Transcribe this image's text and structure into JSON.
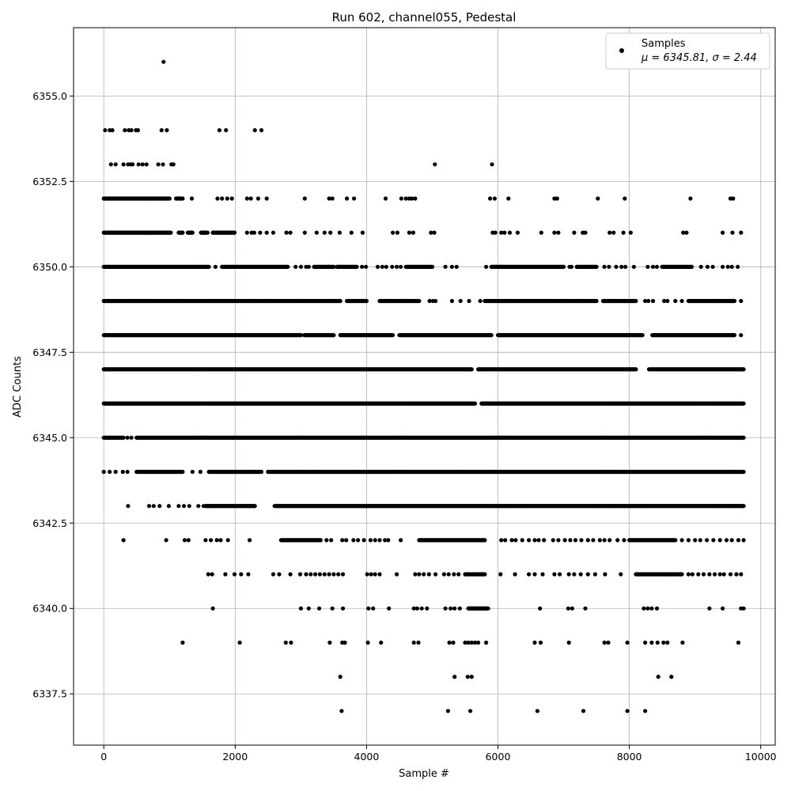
{
  "chart_data": {
    "type": "scatter",
    "title": "Run 602, channel055, Pedestal",
    "xlabel": "Sample #",
    "ylabel": "ADC Counts",
    "xlim": [
      -460,
      10220
    ],
    "ylim": [
      6336.0,
      6357.0
    ],
    "xticks": [
      0,
      2000,
      4000,
      6000,
      8000,
      10000
    ],
    "xtick_labels": [
      "0",
      "2000",
      "4000",
      "6000",
      "8000",
      "10000"
    ],
    "yticks": [
      6337.5,
      6340.0,
      6342.5,
      6345.0,
      6347.5,
      6350.0,
      6352.5,
      6355.0
    ],
    "ytick_labels": [
      "6337.5",
      "6340.0",
      "6342.5",
      "6345.0",
      "6347.5",
      "6350.0",
      "6352.5",
      "6355.0"
    ],
    "grid": true,
    "legend": {
      "placement": "top-right",
      "entries": [
        {
          "label": "Samples",
          "stats": "μ = 6345.81, σ = 2.44",
          "color": "#000000",
          "marker": "circle"
        }
      ]
    },
    "series": [
      {
        "name": "Samples",
        "color": "#000000",
        "x_range": [
          0,
          9740
        ],
        "levels": [
          {
            "y": 6356,
            "x": [
              910
            ]
          },
          {
            "y": 6354,
            "x": [
              20,
              90,
              130,
              320,
              380,
              420,
              490,
              520,
              880,
              960,
              1760,
              1860,
              2300,
              2400
            ]
          },
          {
            "y": 6353,
            "x": [
              110,
              180,
              300,
              370,
              410,
              440,
              530,
              590,
              650,
              830,
              900,
              1030,
              1060,
              5040,
              5910
            ]
          },
          {
            "y": 6352,
            "segments": [
              [
                0,
                1000
              ],
              [
                1100,
                1200
              ]
            ],
            "x": [
              1340,
              1730,
              1800,
              1880,
              1950,
              2180,
              2240,
              2350,
              2480,
              3060,
              3430,
              3480,
              3700,
              3810,
              4290,
              4530,
              4600,
              4650,
              4690,
              4740,
              5880,
              5950,
              6160,
              6860,
              6900,
              7520,
              7930,
              8930,
              9540,
              9580
            ]
          },
          {
            "y": 6351,
            "segments": [
              [
                0,
                1020
              ],
              [
                1140,
                1200
              ],
              [
                1280,
                1350
              ],
              [
                1480,
                1580
              ],
              [
                1660,
                1990
              ]
            ],
            "x": [
              2180,
              2250,
              2290,
              2380,
              2480,
              2580,
              2780,
              2840,
              3060,
              3240,
              3360,
              3450,
              3590,
              3770,
              3940,
              4400,
              4470,
              4650,
              4710,
              4980,
              5030,
              5920,
              5960,
              6050,
              6100,
              6180,
              6300,
              6660,
              6860,
              6920,
              7160,
              7290,
              7330,
              7700,
              7760,
              7910,
              8020,
              8820,
              8870,
              9420,
              9570,
              9700
            ]
          },
          {
            "y": 6350,
            "segments": [
              [
                0,
                1600
              ],
              [
                1800,
                2800
              ],
              [
                3200,
                3500
              ],
              [
                3550,
                3850
              ],
              [
                4600,
                5000
              ],
              [
                5900,
                7000
              ],
              [
                7200,
                7500
              ],
              [
                8500,
                8950
              ]
            ],
            "x": [
              1700,
              2920,
              3000,
              3080,
              3120,
              3930,
              3990,
              4170,
              4240,
              4300,
              4390,
              4460,
              4520,
              5200,
              5300,
              5370,
              5820,
              7090,
              7120,
              7620,
              7690,
              7800,
              7880,
              7940,
              8070,
              8280,
              8360,
              8420,
              9090,
              9190,
              9270,
              9420,
              9500,
              9560,
              9650
            ]
          },
          {
            "y": 6349,
            "segments": [
              [
                0,
                3600
              ],
              [
                3700,
                4000
              ],
              [
                4200,
                4800
              ],
              [
                5800,
                7500
              ],
              [
                7600,
                8100
              ],
              [
                8900,
                9600
              ]
            ],
            "x": [
              4960,
              5010,
              5050,
              5300,
              5430,
              5560,
              5730,
              7040,
              8240,
              8290,
              8360,
              8530,
              8580,
              8700,
              8800,
              9700
            ]
          },
          {
            "y": 6348,
            "segments": [
              [
                0,
                3000
              ],
              [
                3050,
                3500
              ],
              [
                3600,
                4400
              ],
              [
                4500,
                5900
              ],
              [
                6000,
                8200
              ],
              [
                8350,
                9600
              ]
            ],
            "x": [
              9700
            ]
          },
          {
            "y": 6347,
            "segments": [
              [
                0,
                5600
              ],
              [
                5700,
                8100
              ],
              [
                8300,
                9740
              ]
            ]
          },
          {
            "y": 6346,
            "segments": [
              [
                0,
                5650
              ],
              [
                5750,
                9740
              ]
            ]
          },
          {
            "y": 6345,
            "segments": [
              [
                0,
                300
              ],
              [
                500,
                9740
              ]
            ],
            "x": [
              360,
              420
            ]
          },
          {
            "y": 6344,
            "segments": [
              [
                500,
                1200
              ],
              [
                1600,
                2400
              ],
              [
                2500,
                9740
              ]
            ],
            "x": [
              0,
              90,
              180,
              290,
              360,
              1350,
              1470
            ]
          },
          {
            "y": 6343,
            "segments": [
              [
                1550,
                2300
              ],
              [
                2600,
                9740
              ]
            ],
            "x": [
              370,
              690,
              760,
              850,
              990,
              1140,
              1220,
              1300,
              1440,
              1520
            ]
          },
          {
            "y": 6342,
            "segments": [
              [
                2700,
                3300
              ],
              [
                4800,
                5800
              ],
              [
                8000,
                8700
              ]
            ],
            "x": [
              300,
              950,
              1230,
              1290,
              1550,
              1630,
              1720,
              1780,
              1890,
              2220,
              3390,
              3460,
              3630,
              3690,
              3800,
              3870,
              3960,
              4060,
              4130,
              4200,
              4280,
              4330,
              4520,
              6050,
              6110,
              6210,
              6270,
              6370,
              6470,
              6560,
              6620,
              6700,
              6840,
              6920,
              7020,
              7100,
              7180,
              7270,
              7370,
              7450,
              7550,
              7620,
              7700,
              7820,
              7920,
              8800,
              8900,
              9000,
              9080,
              9180,
              9280,
              9380,
              9480,
              9560,
              9660,
              9740
            ]
          },
          {
            "y": 6341,
            "segments": [
              [
                5500,
                5800
              ],
              [
                8100,
                8800
              ]
            ],
            "x": [
              1590,
              1650,
              1850,
              1990,
              2090,
              2200,
              2580,
              2670,
              2840,
              2990,
              3080,
              3150,
              3220,
              3290,
              3360,
              3430,
              3500,
              3570,
              3640,
              4010,
              4070,
              4130,
              4200,
              4460,
              4740,
              4800,
              4870,
              4950,
              5050,
              5180,
              5250,
              5330,
              5400,
              6040,
              6260,
              6470,
              6560,
              6680,
              6860,
              6940,
              7080,
              7160,
              7260,
              7370,
              7480,
              7630,
              7870,
              8900,
              8960,
              9050,
              9130,
              9220,
              9300,
              9380,
              9440,
              9540,
              9630,
              9700
            ]
          },
          {
            "y": 6340,
            "segments": [
              [
                5550,
                5850
              ]
            ],
            "x": [
              1660,
              3000,
              3120,
              3280,
              3480,
              3640,
              4030,
              4100,
              4340,
              4720,
              4770,
              4840,
              4920,
              5200,
              5280,
              5340,
              5420,
              6640,
              7070,
              7130,
              7330,
              8220,
              8280,
              8340,
              8420,
              9220,
              9420,
              9700,
              9740
            ]
          },
          {
            "y": 6339,
            "x": [
              1200,
              2070,
              2770,
              2850,
              3440,
              3630,
              3670,
              4020,
              4220,
              4720,
              4790,
              5260,
              5320,
              5500,
              5550,
              5600,
              5650,
              5700,
              5820,
              6560,
              6650,
              7080,
              7620,
              7680,
              7970,
              8240,
              8340,
              8430,
              8520,
              8580,
              8810,
              9660
            ]
          },
          {
            "y": 6338,
            "x": [
              3600,
              5340,
              5540,
              5600,
              8440,
              8640
            ]
          },
          {
            "y": 6337,
            "x": [
              3620,
              5240,
              5580,
              6600,
              7300,
              7970,
              8240
            ]
          }
        ]
      }
    ]
  }
}
